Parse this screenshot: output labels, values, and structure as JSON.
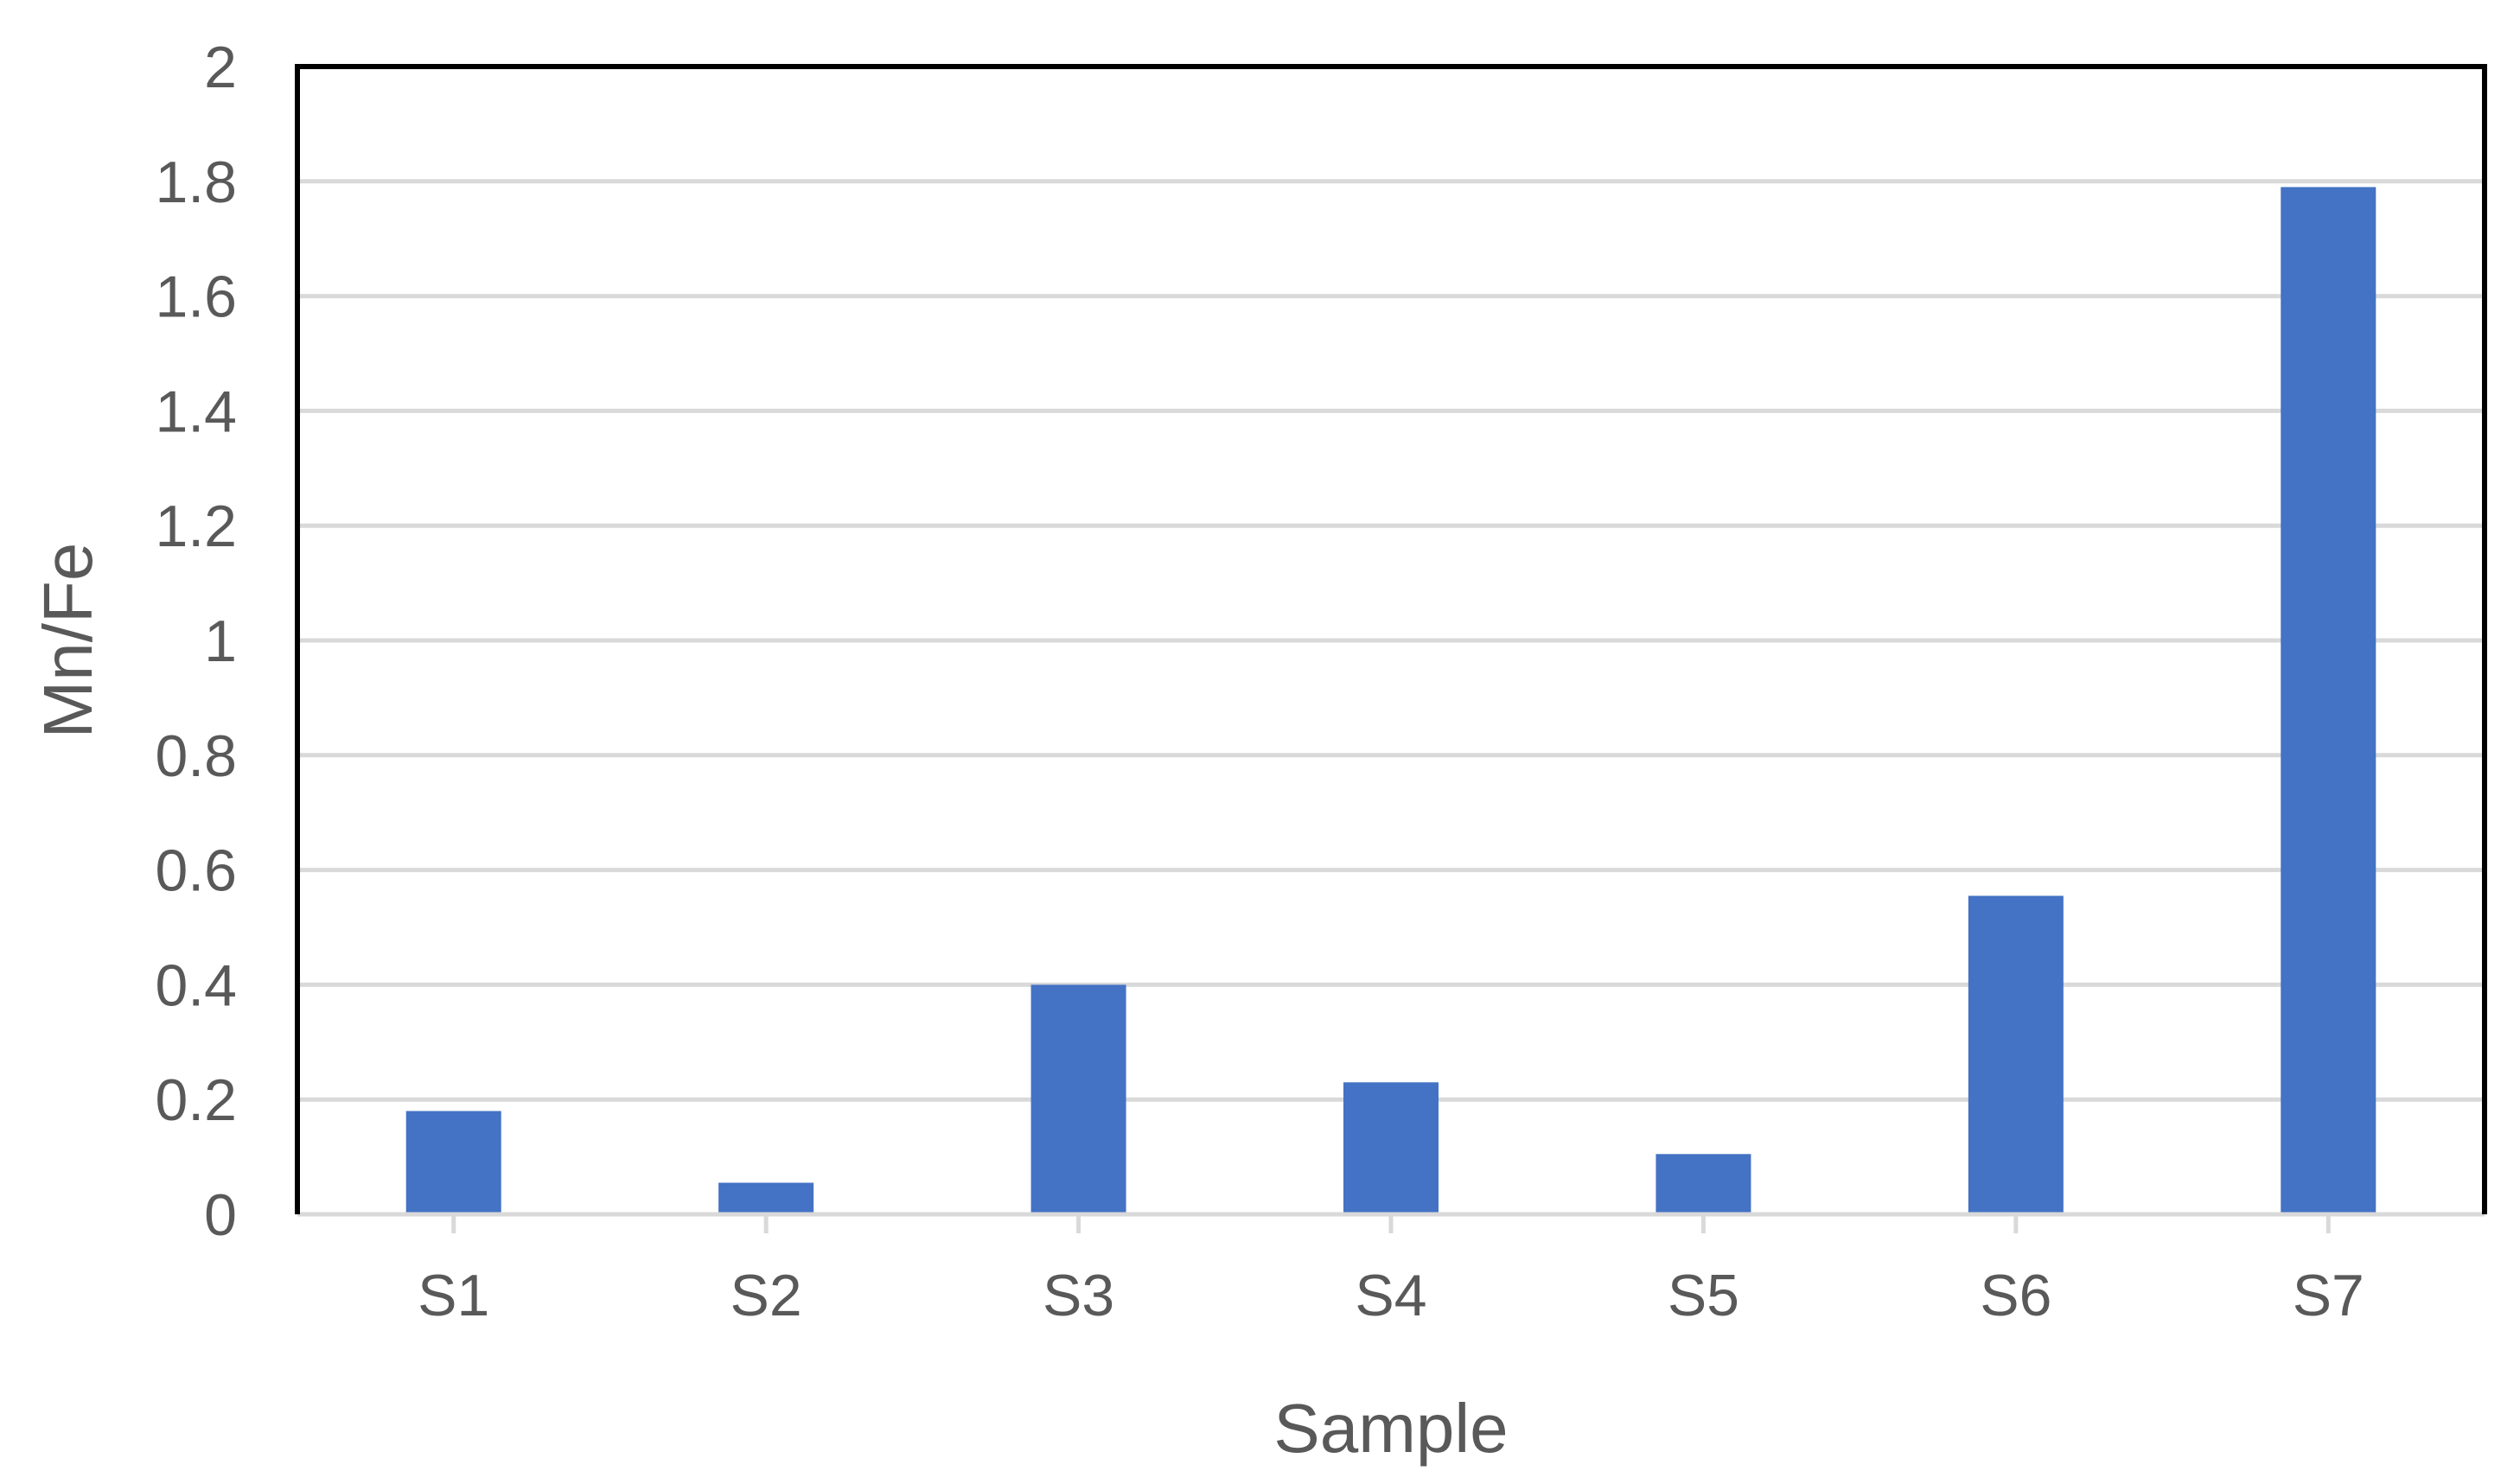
{
  "chart_data": {
    "type": "bar",
    "title": "",
    "xlabel": "Sample",
    "ylabel": "Mn/Fe",
    "categories": [
      "S1",
      "S2",
      "S3",
      "S4",
      "S5",
      "S6",
      "S7"
    ],
    "values": [
      0.18,
      0.055,
      0.4,
      0.23,
      0.105,
      0.555,
      1.79
    ],
    "ylim": [
      0,
      2
    ],
    "yticks": [
      0,
      0.2,
      0.4,
      0.6,
      0.8,
      1,
      1.2,
      1.4,
      1.6,
      1.8,
      2
    ],
    "ytick_labels": [
      "0",
      "0.2",
      "0.4",
      "0.6",
      "0.8",
      "1",
      "1.2",
      "1.4",
      "1.6",
      "1.8",
      "2"
    ],
    "grid": true,
    "legend": "none",
    "bar_color": "#4472c4",
    "grid_color": "#d9d9d9",
    "text_color": "#595959",
    "frame_color": "#000000"
  }
}
